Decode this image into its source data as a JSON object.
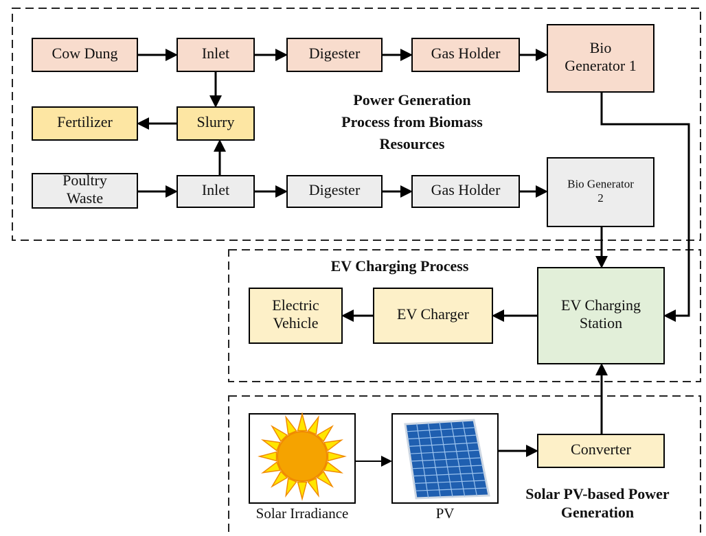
{
  "groups": [
    {
      "title_lines": [
        "Power Generation",
        "Process from Biomass",
        "Resources"
      ]
    },
    {
      "title_lines": [
        "EV Charging Process"
      ]
    },
    {
      "title_lines": [
        "Solar PV-based Power",
        "Generation"
      ]
    }
  ],
  "nodes": [
    {
      "lines": [
        "Cow Dung"
      ]
    },
    {
      "lines": [
        "Inlet"
      ]
    },
    {
      "lines": [
        "Digester"
      ]
    },
    {
      "lines": [
        "Gas Holder"
      ]
    },
    {
      "lines": [
        "Bio",
        "Generator 1"
      ]
    },
    {
      "lines": [
        "Fertilizer"
      ]
    },
    {
      "lines": [
        "Slurry"
      ]
    },
    {
      "lines": [
        "Poultry",
        "Waste"
      ]
    },
    {
      "lines": [
        "Inlet"
      ]
    },
    {
      "lines": [
        "Digester"
      ]
    },
    {
      "lines": [
        "Gas Holder"
      ]
    },
    {
      "lines": [
        "Bio Generator",
        "2"
      ]
    },
    {
      "lines": [
        "Electric",
        "Vehicle"
      ]
    },
    {
      "lines": [
        "EV Charger"
      ]
    },
    {
      "lines": [
        "EV Charging",
        "Station"
      ]
    },
    {
      "lines": [
        "Converter"
      ]
    }
  ],
  "images": [
    {
      "caption": "Solar Irradiance"
    },
    {
      "caption": "PV"
    }
  ]
}
